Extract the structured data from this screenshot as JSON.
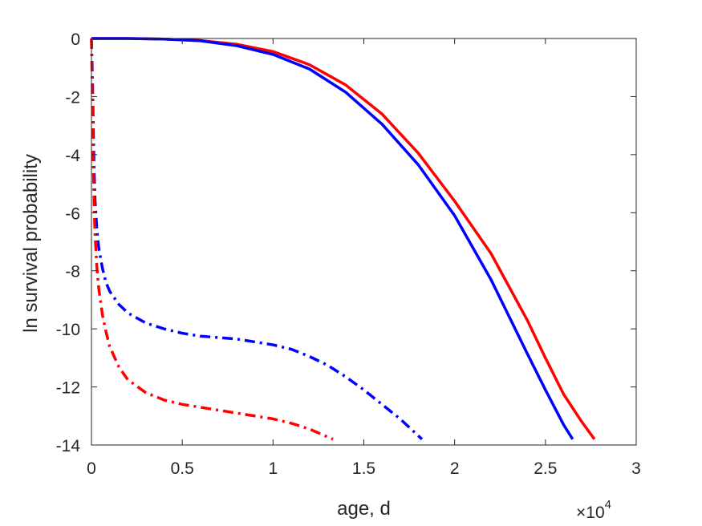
{
  "chart_data": {
    "type": "line",
    "title": "",
    "xlabel": "age, d",
    "ylabel": "ln survival probability",
    "x_multiplier_label": "×10",
    "x_multiplier_exponent": "4",
    "xlim": [
      0,
      30000
    ],
    "ylim": [
      -14,
      0
    ],
    "xticks": [
      0,
      5000,
      10000,
      15000,
      20000,
      25000,
      30000
    ],
    "xtick_labels": [
      "0",
      "0.5",
      "1",
      "1.5",
      "2",
      "2.5",
      "3"
    ],
    "yticks": [
      0,
      -2,
      -4,
      -6,
      -8,
      -10,
      -12,
      -14
    ],
    "ytick_labels": [
      "0",
      "-2",
      "-4",
      "-6",
      "-8",
      "-10",
      "-12",
      "-14"
    ],
    "grid": false,
    "legend": "none",
    "series": [
      {
        "color": "#ff0000",
        "style": "solid",
        "x": [
          0,
          2000,
          4000,
          6000,
          8000,
          10000,
          12000,
          14000,
          16000,
          18000,
          20000,
          22000,
          24000,
          25000,
          26000,
          27000,
          27700
        ],
        "y": [
          0,
          0,
          -0.02,
          -0.07,
          -0.2,
          -0.45,
          -0.9,
          -1.6,
          -2.6,
          -3.95,
          -5.6,
          -7.4,
          -9.7,
          -11.0,
          -12.25,
          -13.2,
          -13.8
        ]
      },
      {
        "color": "#0000ff",
        "style": "solid",
        "x": [
          0,
          2000,
          4000,
          6000,
          8000,
          10000,
          12000,
          14000,
          16000,
          18000,
          20000,
          22000,
          24000,
          25000,
          26000,
          26500
        ],
        "y": [
          0,
          0,
          -0.02,
          -0.08,
          -0.25,
          -0.55,
          -1.05,
          -1.85,
          -2.95,
          -4.35,
          -6.1,
          -8.3,
          -10.85,
          -12.1,
          -13.3,
          -13.8
        ]
      },
      {
        "color": "#0000ff",
        "style": "dashdot",
        "x": [
          0,
          50,
          100,
          150,
          200,
          300,
          400,
          600,
          800,
          1000,
          1500,
          2000,
          3000,
          4000,
          5000,
          6000,
          7000,
          8000,
          9000,
          10000,
          11000,
          12000,
          13000,
          14000,
          15000,
          16000,
          17000,
          18200
        ],
        "y": [
          0,
          -1.2,
          -3.0,
          -4.6,
          -5.6,
          -6.6,
          -7.2,
          -7.9,
          -8.4,
          -8.7,
          -9.15,
          -9.45,
          -9.8,
          -10.0,
          -10.15,
          -10.25,
          -10.3,
          -10.35,
          -10.45,
          -10.55,
          -10.7,
          -10.95,
          -11.25,
          -11.65,
          -12.1,
          -12.6,
          -13.1,
          -13.8
        ]
      },
      {
        "color": "#ff0000",
        "style": "dashdot",
        "x": [
          0,
          50,
          100,
          150,
          200,
          300,
          400,
          600,
          800,
          1000,
          1500,
          2000,
          3000,
          4000,
          5000,
          6000,
          7000,
          8000,
          9000,
          10000,
          11000,
          12000,
          13300
        ],
        "y": [
          0,
          -2.0,
          -4.2,
          -5.8,
          -6.8,
          -7.9,
          -8.6,
          -9.5,
          -10.1,
          -10.6,
          -11.3,
          -11.75,
          -12.2,
          -12.45,
          -12.6,
          -12.7,
          -12.8,
          -12.9,
          -13.0,
          -13.1,
          -13.25,
          -13.45,
          -13.8
        ]
      }
    ]
  }
}
